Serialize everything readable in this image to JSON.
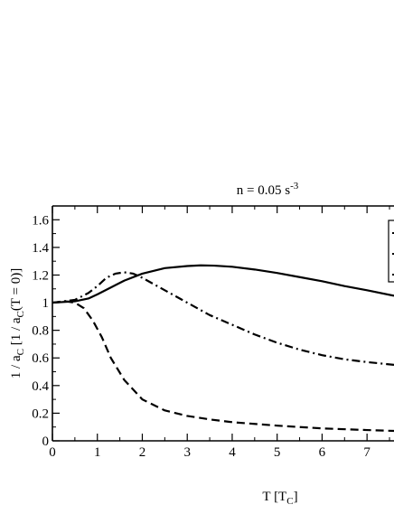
{
  "chart_data": {
    "type": "line",
    "title": "n = 0.05 s",
    "title_superscript": "-3",
    "xlabel": "T [T",
    "xlabel_subscript": "C",
    "xlabel_suffix": "]",
    "ylabel_prefix": "1 / a",
    "ylabel_subscript": "C",
    "ylabel_middle": " [1 / a",
    "ylabel_subscript2": "C",
    "ylabel_suffix": "(T = 0)]",
    "xlim": [
      0,
      7.6
    ],
    "ylim": [
      0,
      1.7
    ],
    "xticks": [
      "0",
      "1",
      "2",
      "3",
      "4",
      "5",
      "6",
      "7"
    ],
    "yticks": [
      "0",
      "0.2",
      "0.4",
      "0.6",
      "0.8",
      "1",
      "1.2",
      "1.4",
      "1.6"
    ],
    "grid": false,
    "legend": "top-right (cut off)",
    "series": [
      {
        "style": "solid",
        "x": [
          0,
          0.5,
          0.8,
          1.0,
          1.3,
          1.6,
          2.0,
          2.5,
          3.0,
          3.3,
          3.6,
          4.0,
          4.5,
          5.0,
          5.5,
          6.0,
          6.5,
          7.0,
          7.6
        ],
        "y": [
          1.0,
          1.01,
          1.03,
          1.06,
          1.11,
          1.16,
          1.21,
          1.25,
          1.265,
          1.27,
          1.268,
          1.26,
          1.24,
          1.215,
          1.185,
          1.155,
          1.12,
          1.09,
          1.05
        ]
      },
      {
        "style": "dashdot",
        "x": [
          0,
          0.5,
          0.8,
          1.0,
          1.2,
          1.4,
          1.6,
          1.8,
          2.0,
          2.5,
          3.0,
          3.5,
          4.0,
          4.5,
          5.0,
          5.5,
          6.0,
          6.5,
          7.0,
          7.6
        ],
        "y": [
          1.0,
          1.02,
          1.07,
          1.12,
          1.18,
          1.21,
          1.22,
          1.21,
          1.18,
          1.09,
          1.0,
          0.91,
          0.84,
          0.77,
          0.71,
          0.66,
          0.62,
          0.59,
          0.57,
          0.55
        ]
      },
      {
        "style": "dashed",
        "x": [
          0,
          0.3,
          0.5,
          0.7,
          0.9,
          1.1,
          1.3,
          1.6,
          2.0,
          2.5,
          3.0,
          3.5,
          4.0,
          5.0,
          6.0,
          7.0,
          7.6
        ],
        "y": [
          1.0,
          1.01,
          1.0,
          0.96,
          0.87,
          0.75,
          0.6,
          0.44,
          0.3,
          0.22,
          0.18,
          0.155,
          0.135,
          0.11,
          0.09,
          0.078,
          0.072
        ]
      }
    ]
  }
}
